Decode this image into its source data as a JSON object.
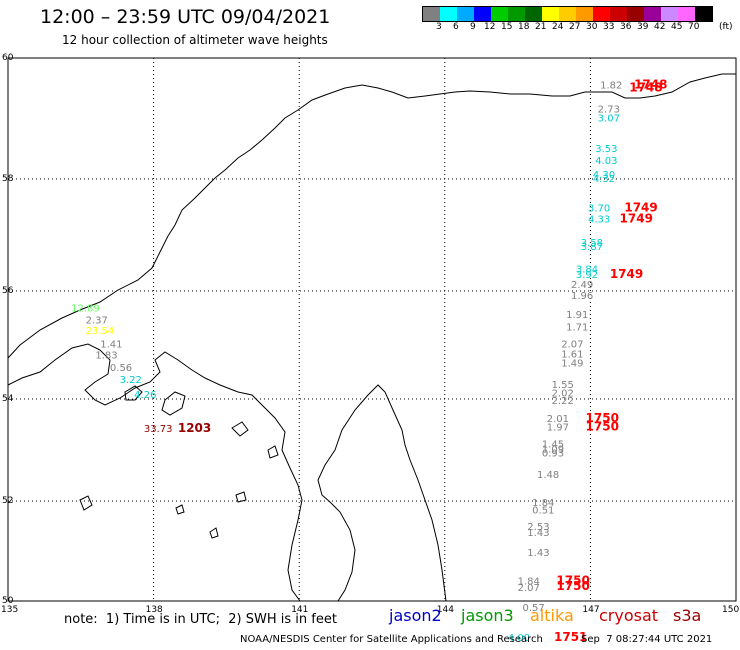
{
  "title": "12:00 – 23:59 UTC 09/04/2021",
  "subtitle": "12 hour collection of altimeter wave heights",
  "scale": {
    "colors": [
      "#808080",
      "#00ffff",
      "#00aaff",
      "#0000ff",
      "#00cc00",
      "#009900",
      "#006600",
      "#ffff00",
      "#ffcc00",
      "#ff9900",
      "#ff0000",
      "#cc0000",
      "#990000",
      "#990099",
      "#cc88ff",
      "#ff66ff",
      "#000000"
    ],
    "labels": [
      "3",
      "6",
      "9",
      "12",
      "15",
      "18",
      "21",
      "24",
      "27",
      "30",
      "33",
      "36",
      "39",
      "42",
      "45",
      "70"
    ],
    "unit": "(ft)"
  },
  "axes": {
    "lat_labels": [
      "60",
      "58",
      "56",
      "54",
      "52",
      "50"
    ],
    "lon_labels": [
      "135",
      "138",
      "141",
      "144",
      "147",
      "150"
    ]
  },
  "observations": [
    {
      "text": "1.82",
      "color": "#808080",
      "lon": 147.2,
      "lat": 59.5
    },
    {
      "text": "1748",
      "color": "#ff0000",
      "lon": 147.9,
      "lat": 59.5
    },
    {
      "text": "1748",
      "color": "#ff0000",
      "lon": 147.8,
      "lat": 59.45
    },
    {
      "text": "2.73",
      "color": "#808080",
      "lon": 147.15,
      "lat": 59.1
    },
    {
      "text": "3.07",
      "color": "#00cccc",
      "lon": 147.15,
      "lat": 58.95
    },
    {
      "text": "3.53",
      "color": "#00cccc",
      "lon": 147.1,
      "lat": 58.45
    },
    {
      "text": "4.03",
      "color": "#00cccc",
      "lon": 147.1,
      "lat": 58.25
    },
    {
      "text": "4.30",
      "color": "#00cccc",
      "lon": 147.05,
      "lat": 58.02
    },
    {
      "text": "4.32",
      "color": "#00cccc",
      "lon": 147.05,
      "lat": 57.95
    },
    {
      "text": "3.70",
      "color": "#00cccc",
      "lon": 146.95,
      "lat": 57.42
    },
    {
      "text": "1749",
      "color": "#ff0000",
      "lon": 147.7,
      "lat": 57.42
    },
    {
      "text": "4.33",
      "color": "#00cccc",
      "lon": 146.95,
      "lat": 57.22
    },
    {
      "text": "1749",
      "color": "#ff0000",
      "lon": 147.6,
      "lat": 57.22
    },
    {
      "text": "3.58",
      "color": "#00cccc",
      "lon": 146.8,
      "lat": 56.8
    },
    {
      "text": "3.87",
      "color": "#00cccc",
      "lon": 146.8,
      "lat": 56.73
    },
    {
      "text": "3.84",
      "color": "#00cccc",
      "lon": 146.7,
      "lat": 56.33
    },
    {
      "text": "3.92",
      "color": "#00cccc",
      "lon": 146.7,
      "lat": 56.23
    },
    {
      "text": "1749",
      "color": "#ff0000",
      "lon": 147.4,
      "lat": 56.23
    },
    {
      "text": "2.49",
      "color": "#808080",
      "lon": 146.6,
      "lat": 56.05
    },
    {
      "text": "1.96",
      "color": "#808080",
      "lon": 146.6,
      "lat": 55.85
    },
    {
      "text": "1.91",
      "color": "#808080",
      "lon": 146.5,
      "lat": 55.5
    },
    {
      "text": "1.71",
      "color": "#808080",
      "lon": 146.5,
      "lat": 55.27
    },
    {
      "text": "2.07",
      "color": "#808080",
      "lon": 146.4,
      "lat": 54.95
    },
    {
      "text": "1.61",
      "color": "#808080",
      "lon": 146.4,
      "lat": 54.77
    },
    {
      "text": "1.49",
      "color": "#808080",
      "lon": 146.4,
      "lat": 54.6
    },
    {
      "text": "1.55",
      "color": "#808080",
      "lon": 146.2,
      "lat": 54.2
    },
    {
      "text": "2.02",
      "color": "#808080",
      "lon": 146.2,
      "lat": 54.05
    },
    {
      "text": "2.22",
      "color": "#808080",
      "lon": 146.2,
      "lat": 53.9
    },
    {
      "text": "2.01",
      "color": "#808080",
      "lon": 146.1,
      "lat": 53.55
    },
    {
      "text": "1750",
      "color": "#ff0000",
      "lon": 146.9,
      "lat": 53.55
    },
    {
      "text": "1.97",
      "color": "#808080",
      "lon": 146.1,
      "lat": 53.38
    },
    {
      "text": "1750",
      "color": "#ff0000",
      "lon": 146.9,
      "lat": 53.38
    },
    {
      "text": "1.45",
      "color": "#808080",
      "lon": 146.0,
      "lat": 53.05
    },
    {
      "text": "1.09",
      "color": "#808080",
      "lon": 146.0,
      "lat": 52.95
    },
    {
      "text": "0.93",
      "color": "#808080",
      "lon": 146.0,
      "lat": 52.87
    },
    {
      "text": "1.48",
      "color": "#808080",
      "lon": 145.9,
      "lat": 52.45
    },
    {
      "text": "1.84",
      "color": "#808080",
      "lon": 145.8,
      "lat": 51.9
    },
    {
      "text": "0.51",
      "color": "#808080",
      "lon": 145.8,
      "lat": 51.75
    },
    {
      "text": "2.53",
      "color": "#808080",
      "lon": 145.7,
      "lat": 51.42
    },
    {
      "text": "1.43",
      "color": "#808080",
      "lon": 145.7,
      "lat": 51.3
    },
    {
      "text": "1.43",
      "color": "#808080",
      "lon": 145.7,
      "lat": 50.9
    },
    {
      "text": "1.84",
      "color": "#808080",
      "lon": 145.5,
      "lat": 50.33
    },
    {
      "text": "1750",
      "color": "#ff0000",
      "lon": 146.3,
      "lat": 50.33
    },
    {
      "text": "2.07",
      "color": "#808080",
      "lon": 145.5,
      "lat": 50.2
    },
    {
      "text": "1750",
      "color": "#ff0000",
      "lon": 146.3,
      "lat": 50.22
    },
    {
      "text": "0.57",
      "color": "#808080",
      "lon": 145.6,
      "lat": 49.8
    },
    {
      "text": "4.00",
      "color": "#00cccc",
      "lon": 145.3,
      "lat": 49.2
    },
    {
      "text": "1751",
      "color": "#ff0000",
      "lon": 146.25,
      "lat": 49.2
    },
    {
      "text": "12.89",
      "color": "#66ff66",
      "lon": 136.3,
      "lat": 55.62
    },
    {
      "text": "2.37",
      "color": "#808080",
      "lon": 136.6,
      "lat": 55.4
    },
    {
      "text": "23.54",
      "color": "#ffff00",
      "lon": 136.6,
      "lat": 55.2
    },
    {
      "text": "1.41",
      "color": "#808080",
      "lon": 136.9,
      "lat": 54.95
    },
    {
      "text": "1.83",
      "color": "#808080",
      "lon": 136.8,
      "lat": 54.75
    },
    {
      "text": "0.56",
      "color": "#808080",
      "lon": 137.1,
      "lat": 54.52
    },
    {
      "text": "3.22",
      "color": "#00cccc",
      "lon": 137.3,
      "lat": 54.3
    },
    {
      "text": "4.26",
      "color": "#00cccc",
      "lon": 137.6,
      "lat": 54.02
    },
    {
      "text": "33.73",
      "color": "#990000",
      "lon": 137.8,
      "lat": 53.35
    },
    {
      "text": "1203",
      "color": "#990000",
      "lon": 138.5,
      "lat": 53.35
    }
  ],
  "footer": {
    "note": "note:  1) Time is in UTC;  2) SWH is in feet",
    "satellites": [
      {
        "name": "jason2",
        "color": "#0000cc"
      },
      {
        "name": "jason3",
        "color": "#009900"
      },
      {
        "name": "altika",
        "color": "#ff9900"
      },
      {
        "name": "cryosat",
        "color": "#cc0000"
      },
      {
        "name": "s3a",
        "color": "#990000"
      }
    ],
    "credit": "NOAA/NESDIS Center for Satellite Applications and Research",
    "timestamp": "Sep  7 08:27:44 UTC 2021"
  }
}
